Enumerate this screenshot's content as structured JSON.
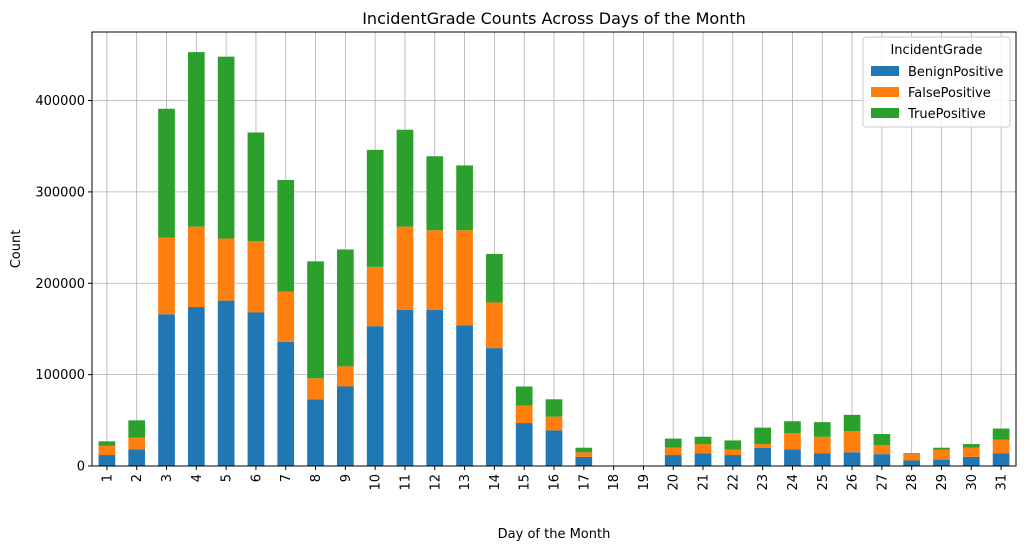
{
  "chart_data": {
    "type": "bar",
    "stacked": true,
    "title": "IncidentGrade Counts Across Days of the Month",
    "xlabel": "Day of the Month",
    "ylabel": "Count",
    "ylim": [
      0,
      475000
    ],
    "yticks": [
      0,
      100000,
      200000,
      300000,
      400000
    ],
    "grid": true,
    "legend_title": "IncidentGrade",
    "legend_position": "top-right",
    "categories": [
      "1",
      "2",
      "3",
      "4",
      "5",
      "6",
      "7",
      "8",
      "9",
      "10",
      "11",
      "12",
      "13",
      "14",
      "15",
      "16",
      "17",
      "18",
      "19",
      "20",
      "21",
      "22",
      "23",
      "24",
      "25",
      "26",
      "27",
      "28",
      "29",
      "30",
      "31"
    ],
    "series": [
      {
        "name": "BenignPositive",
        "color": "#1f77b4",
        "values": [
          12000,
          18000,
          166000,
          174000,
          181000,
          168000,
          136000,
          73000,
          87000,
          153000,
          171000,
          171000,
          154000,
          129000,
          47000,
          39000,
          10000,
          0,
          0,
          12000,
          14000,
          12000,
          20000,
          18000,
          14000,
          15000,
          13000,
          6000,
          7000,
          10000,
          14000
        ]
      },
      {
        "name": "FalsePositive",
        "color": "#ff7f0e",
        "values": [
          10000,
          13000,
          84000,
          88000,
          68000,
          78000,
          55000,
          23000,
          22000,
          65000,
          91000,
          87000,
          104000,
          50000,
          19000,
          15000,
          5000,
          0,
          0,
          8000,
          10000,
          6000,
          4000,
          18000,
          18000,
          23000,
          10000,
          7000,
          11000,
          10000,
          15000
        ]
      },
      {
        "name": "TruePositive",
        "color": "#2ca02c",
        "values": [
          5000,
          19000,
          141000,
          191000,
          199000,
          119000,
          122000,
          128000,
          128000,
          128000,
          106000,
          81000,
          71000,
          53000,
          21000,
          19000,
          5000,
          0,
          0,
          10000,
          8000,
          10000,
          18000,
          13000,
          16000,
          18000,
          12000,
          1000,
          2000,
          4000,
          12000
        ]
      }
    ]
  }
}
